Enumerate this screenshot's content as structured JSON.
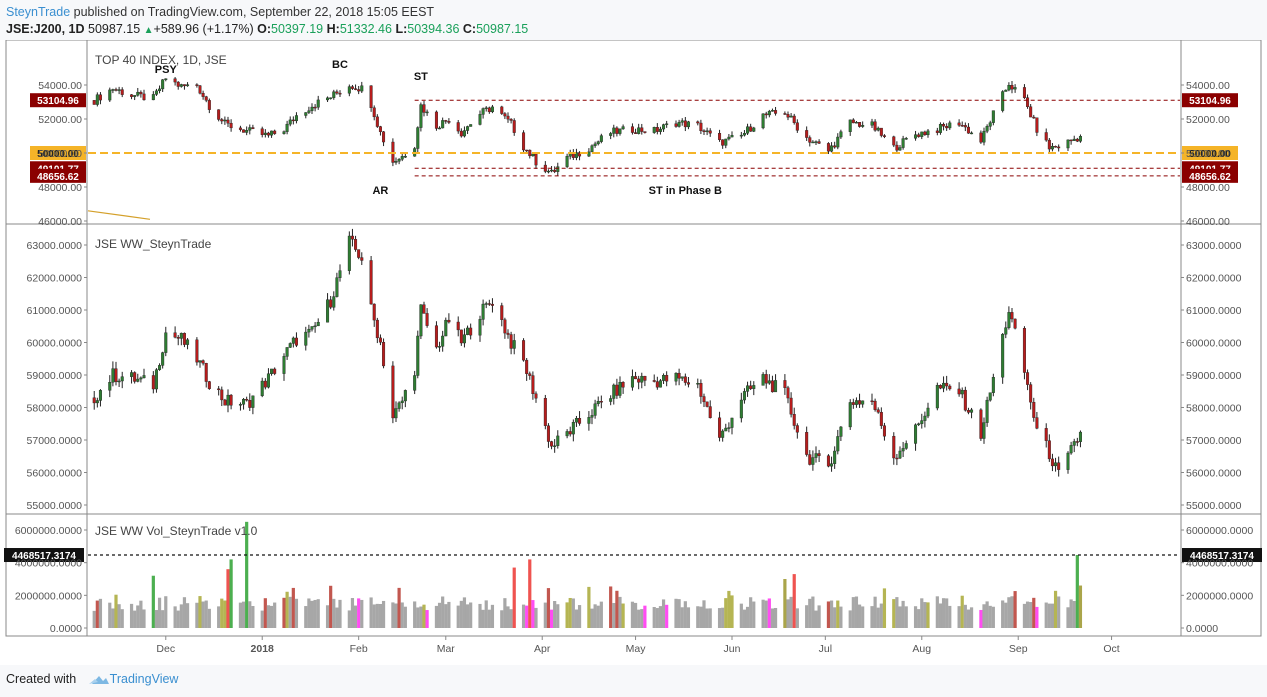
{
  "header": {
    "brand": "SteynTrade",
    "published": "published on TradingView.com, September 22, 2018 15:05 EEST",
    "symbol": "JSE:J200, 1D",
    "last": "50987.15",
    "change_arrow": "▲",
    "change": "+589.96 (+1.17%)",
    "o_label": "O:",
    "o": "50397.19",
    "h_label": "H:",
    "h": "51332.46",
    "l_label": "L:",
    "l": "50394.36",
    "c_label": "C:",
    "c": "50987.15"
  },
  "footer": {
    "created": "Created with",
    "logo_text": "TradingView",
    "logo_icon": "cloud-icon"
  },
  "colors": {
    "up": "#2e7d32",
    "down": "#b71c1c",
    "level": "#8b0000",
    "support": "#f5b428",
    "vol_gray": "#a7a7a7"
  },
  "chart_data": [
    {
      "type": "candlestick",
      "title": "TOP 40 INDEX, 1D, JSE",
      "ylim": [
        46000,
        55000
      ],
      "y_ticks": [
        "54000.00",
        "52000.00",
        "50000.00",
        "48000.00",
        "46000.00"
      ],
      "levels": [
        {
          "value": 53104.96,
          "label": "53104.96",
          "style": "dashed",
          "color": "#8b0000"
        },
        {
          "value": 50000.0,
          "label": "50000.00",
          "style": "dashed",
          "color": "#f5b428"
        },
        {
          "value": 49101.77,
          "label": "49101.77",
          "style": "dashed",
          "color": "#8b0000"
        },
        {
          "value": 48656.62,
          "label": "48656.62",
          "style": "dashed",
          "color": "#8b0000"
        }
      ],
      "annotations": [
        {
          "text": "PSY",
          "date": "2017-12-01",
          "value": 54700
        },
        {
          "text": "BC",
          "date": "2018-01-26",
          "value": 55000
        },
        {
          "text": "ST",
          "date": "2018-02-21",
          "value": 54300
        },
        {
          "text": "AR",
          "date": "2018-02-08",
          "value": 47600
        },
        {
          "text": "ST in Phase B",
          "date": "2018-05-17",
          "value": 47600
        }
      ],
      "close_path": [
        [
          "2017-11-08",
          53100
        ],
        [
          "2017-11-14",
          53800
        ],
        [
          "2017-11-20",
          53400
        ],
        [
          "2017-11-27",
          53200
        ],
        [
          "2017-12-01",
          54400
        ],
        [
          "2017-12-06",
          53900
        ],
        [
          "2017-12-11",
          54000
        ],
        [
          "2017-12-15",
          52800
        ],
        [
          "2017-12-20",
          51700
        ],
        [
          "2017-12-27",
          51300
        ],
        [
          "2018-01-03",
          51000
        ],
        [
          "2018-01-08",
          51400
        ],
        [
          "2018-01-12",
          52200
        ],
        [
          "2018-01-17",
          52800
        ],
        [
          "2018-01-23",
          53300
        ],
        [
          "2018-01-29",
          54000
        ],
        [
          "2018-02-02",
          53800
        ],
        [
          "2018-02-05",
          52900
        ],
        [
          "2018-02-08",
          51200
        ],
        [
          "2018-02-12",
          49500
        ],
        [
          "2018-02-15",
          49800
        ],
        [
          "2018-02-19",
          50500
        ],
        [
          "2018-02-21",
          52800
        ],
        [
          "2018-02-26",
          51600
        ],
        [
          "2018-03-02",
          52000
        ],
        [
          "2018-03-06",
          51200
        ],
        [
          "2018-03-12",
          52300
        ],
        [
          "2018-03-16",
          52700
        ],
        [
          "2018-03-22",
          51700
        ],
        [
          "2018-03-26",
          50400
        ],
        [
          "2018-03-30",
          49500
        ],
        [
          "2018-04-04",
          48800
        ],
        [
          "2018-04-09",
          49700
        ],
        [
          "2018-04-16",
          50300
        ],
        [
          "2018-04-23",
          51200
        ],
        [
          "2018-04-30",
          51400
        ],
        [
          "2018-05-07",
          51300
        ],
        [
          "2018-05-14",
          51800
        ],
        [
          "2018-05-21",
          51600
        ],
        [
          "2018-05-28",
          50600
        ],
        [
          "2018-06-04",
          51000
        ],
        [
          "2018-06-11",
          52200
        ],
        [
          "2018-06-18",
          52400
        ],
        [
          "2018-06-25",
          50900
        ],
        [
          "2018-07-02",
          50100
        ],
        [
          "2018-07-09",
          51800
        ],
        [
          "2018-07-16",
          51600
        ],
        [
          "2018-07-23",
          50300
        ],
        [
          "2018-07-30",
          51100
        ],
        [
          "2018-08-06",
          51400
        ],
        [
          "2018-08-13",
          51800
        ],
        [
          "2018-08-20",
          50700
        ],
        [
          "2018-08-24",
          52300
        ],
        [
          "2018-08-29",
          54100
        ],
        [
          "2018-09-03",
          53100
        ],
        [
          "2018-09-07",
          51400
        ],
        [
          "2018-09-11",
          50300
        ],
        [
          "2018-09-14",
          50400
        ],
        [
          "2018-09-21",
          50987
        ]
      ]
    },
    {
      "type": "candlestick",
      "title": "JSE WW_SteynTrade",
      "ylim": [
        55000,
        63000
      ],
      "y_ticks": [
        "63000.0000",
        "62000.0000",
        "61000.0000",
        "60000.0000",
        "59000.0000",
        "58000.0000",
        "57000.0000",
        "56000.0000",
        "55000.0000"
      ],
      "close_path": [
        [
          "2017-11-08",
          58300
        ],
        [
          "2017-11-14",
          59000
        ],
        [
          "2017-11-20",
          58900
        ],
        [
          "2017-11-27",
          58700
        ],
        [
          "2017-12-01",
          60300
        ],
        [
          "2017-12-06",
          60100
        ],
        [
          "2017-12-11",
          59500
        ],
        [
          "2017-12-15",
          58800
        ],
        [
          "2017-12-20",
          58200
        ],
        [
          "2017-12-27",
          58100
        ],
        [
          "2018-01-03",
          58900
        ],
        [
          "2018-01-08",
          59600
        ],
        [
          "2018-01-12",
          60100
        ],
        [
          "2018-01-17",
          60300
        ],
        [
          "2018-01-23",
          61300
        ],
        [
          "2018-01-29",
          63100
        ],
        [
          "2018-02-02",
          62600
        ],
        [
          "2018-02-05",
          61000
        ],
        [
          "2018-02-08",
          60000
        ],
        [
          "2018-02-12",
          57700
        ],
        [
          "2018-02-15",
          58200
        ],
        [
          "2018-02-19",
          59200
        ],
        [
          "2018-02-21",
          61000
        ],
        [
          "2018-02-26",
          59800
        ],
        [
          "2018-03-02",
          60700
        ],
        [
          "2018-03-06",
          60000
        ],
        [
          "2018-03-12",
          60900
        ],
        [
          "2018-03-16",
          61300
        ],
        [
          "2018-03-22",
          60000
        ],
        [
          "2018-03-26",
          59400
        ],
        [
          "2018-03-30",
          58300
        ],
        [
          "2018-04-04",
          56800
        ],
        [
          "2018-04-09",
          57200
        ],
        [
          "2018-04-16",
          57800
        ],
        [
          "2018-04-23",
          58400
        ],
        [
          "2018-04-30",
          58900
        ],
        [
          "2018-05-07",
          58800
        ],
        [
          "2018-05-14",
          58900
        ],
        [
          "2018-05-21",
          58700
        ],
        [
          "2018-05-28",
          57000
        ],
        [
          "2018-06-04",
          58300
        ],
        [
          "2018-06-11",
          58900
        ],
        [
          "2018-06-18",
          58400
        ],
        [
          "2018-06-25",
          56500
        ],
        [
          "2018-07-02",
          56200
        ],
        [
          "2018-07-09",
          58200
        ],
        [
          "2018-07-16",
          58200
        ],
        [
          "2018-07-23",
          56500
        ],
        [
          "2018-07-30",
          57300
        ],
        [
          "2018-08-06",
          58600
        ],
        [
          "2018-08-13",
          58500
        ],
        [
          "2018-08-20",
          57200
        ],
        [
          "2018-08-24",
          58900
        ],
        [
          "2018-08-29",
          61000
        ],
        [
          "2018-09-03",
          59100
        ],
        [
          "2018-09-07",
          57300
        ],
        [
          "2018-09-11",
          56600
        ],
        [
          "2018-09-14",
          55900
        ],
        [
          "2018-09-21",
          57200
        ]
      ]
    },
    {
      "type": "bar",
      "title": "JSE WW Vol_SteynTrade v1.0",
      "ylim": [
        0,
        6000000
      ],
      "y_ticks": [
        "6000000.0000",
        "4000000.0000",
        "2000000.0000",
        "0.0000"
      ],
      "level": {
        "value": 4468517.3174,
        "label": "4468517.3174",
        "style": "dashed"
      },
      "base_volume": 1500000,
      "spikes": [
        {
          "date": "2017-11-27",
          "value": 3200000,
          "color": "#4caf50"
        },
        {
          "date": "2017-12-21",
          "value": 3600000,
          "color": "#ef5350"
        },
        {
          "date": "2017-12-22",
          "value": 4200000,
          "color": "#4caf50"
        },
        {
          "date": "2017-12-27",
          "value": 6500000,
          "color": "#4caf50"
        },
        {
          "date": "2018-03-23",
          "value": 3700000,
          "color": "#ef5350"
        },
        {
          "date": "2018-03-28",
          "value": 4200000,
          "color": "#ef5350"
        },
        {
          "date": "2018-06-21",
          "value": 3300000,
          "color": "#ef5350"
        },
        {
          "date": "2018-06-18",
          "value": 3000000,
          "color": "#aaa54a"
        },
        {
          "date": "2018-09-20",
          "value": 4468517,
          "color": "#4caf50"
        },
        {
          "date": "2018-09-21",
          "value": 2600000,
          "color": "#aaa54a"
        }
      ]
    }
  ],
  "x_axis": {
    "ticks": [
      {
        "label": "Dec",
        "date": "2017-12-01"
      },
      {
        "label": "2018",
        "date": "2018-01-01"
      },
      {
        "label": "Feb",
        "date": "2018-02-01"
      },
      {
        "label": "Mar",
        "date": "2018-03-01"
      },
      {
        "label": "Apr",
        "date": "2018-04-01"
      },
      {
        "label": "May",
        "date": "2018-05-01"
      },
      {
        "label": "Jun",
        "date": "2018-06-01"
      },
      {
        "label": "Jul",
        "date": "2018-07-01"
      },
      {
        "label": "Aug",
        "date": "2018-08-01"
      },
      {
        "label": "Sep",
        "date": "2018-09-01"
      },
      {
        "label": "Oct",
        "date": "2018-10-01"
      }
    ]
  }
}
